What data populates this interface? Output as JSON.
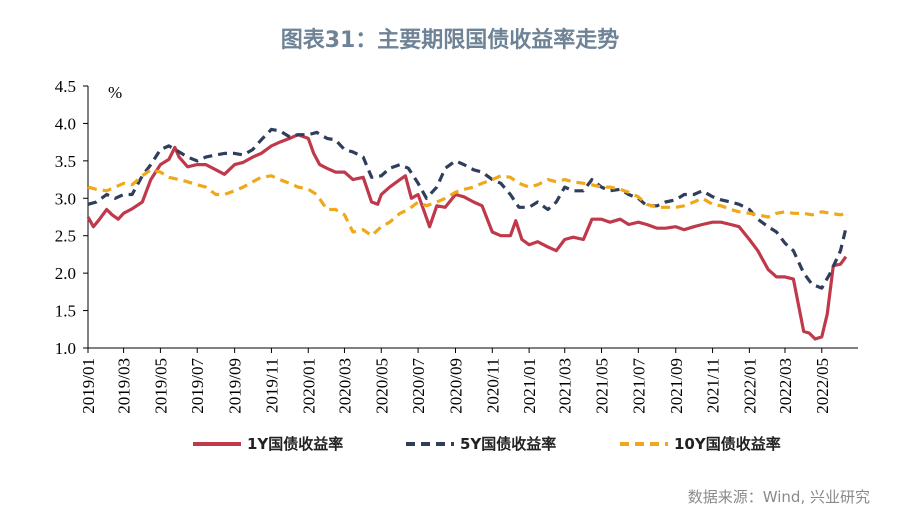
{
  "title": "图表31：主要期限国债收益率走势",
  "source": "数据来源：Wind, 兴业研究",
  "chart_data": {
    "type": "line",
    "ylabel": "%",
    "ylim": [
      1.0,
      4.5
    ],
    "yticks": [
      "1.0",
      "1.5",
      "2.0",
      "2.5",
      "3.0",
      "3.5",
      "4.0",
      "4.5"
    ],
    "xlim": [
      "2019-01",
      "2022-06"
    ],
    "xticks": [
      "2019/01",
      "2019/03",
      "2019/05",
      "2019/07",
      "2019/09",
      "2019/11",
      "2020/01",
      "2020/03",
      "2020/05",
      "2020/07",
      "2020/09",
      "2020/11",
      "2021/01",
      "2021/03",
      "2021/05",
      "2021/07",
      "2021/09",
      "2021/11",
      "2022/01",
      "2022/03",
      "2022/05"
    ],
    "legend_position": "bottom",
    "series": [
      {
        "name": "1Y国债收益率",
        "color": "#c0394b",
        "style": "solid",
        "points": [
          [
            "2019-01-01",
            2.75
          ],
          [
            "2019-01-10",
            2.62
          ],
          [
            "2019-01-20",
            2.72
          ],
          [
            "2019-02-01",
            2.85
          ],
          [
            "2019-02-10",
            2.78
          ],
          [
            "2019-02-20",
            2.72
          ],
          [
            "2019-03-01",
            2.8
          ],
          [
            "2019-03-15",
            2.86
          ],
          [
            "2019-04-01",
            2.95
          ],
          [
            "2019-04-15",
            3.25
          ],
          [
            "2019-05-01",
            3.45
          ],
          [
            "2019-05-15",
            3.52
          ],
          [
            "2019-05-25",
            3.68
          ],
          [
            "2019-06-01",
            3.55
          ],
          [
            "2019-06-15",
            3.42
          ],
          [
            "2019-07-01",
            3.45
          ],
          [
            "2019-07-15",
            3.45
          ],
          [
            "2019-08-01",
            3.38
          ],
          [
            "2019-08-15",
            3.32
          ],
          [
            "2019-09-01",
            3.45
          ],
          [
            "2019-09-15",
            3.48
          ],
          [
            "2019-10-01",
            3.55
          ],
          [
            "2019-10-15",
            3.6
          ],
          [
            "2019-11-01",
            3.7
          ],
          [
            "2019-11-15",
            3.75
          ],
          [
            "2019-12-01",
            3.8
          ],
          [
            "2019-12-15",
            3.85
          ],
          [
            "2020-01-01",
            3.8
          ],
          [
            "2020-01-10",
            3.6
          ],
          [
            "2020-01-20",
            3.45
          ],
          [
            "2020-02-01",
            3.4
          ],
          [
            "2020-02-15",
            3.35
          ],
          [
            "2020-03-01",
            3.35
          ],
          [
            "2020-03-15",
            3.25
          ],
          [
            "2020-04-01",
            3.28
          ],
          [
            "2020-04-15",
            2.95
          ],
          [
            "2020-04-25",
            2.92
          ],
          [
            "2020-05-01",
            3.05
          ],
          [
            "2020-05-15",
            3.15
          ],
          [
            "2020-06-01",
            3.25
          ],
          [
            "2020-06-10",
            3.3
          ],
          [
            "2020-06-20",
            3.0
          ],
          [
            "2020-07-01",
            3.05
          ],
          [
            "2020-07-10",
            2.85
          ],
          [
            "2020-07-20",
            2.62
          ],
          [
            "2020-08-01",
            2.9
          ],
          [
            "2020-08-15",
            2.88
          ],
          [
            "2020-09-01",
            3.05
          ],
          [
            "2020-09-15",
            3.02
          ],
          [
            "2020-10-01",
            2.95
          ],
          [
            "2020-10-15",
            2.9
          ],
          [
            "2020-11-01",
            2.55
          ],
          [
            "2020-11-15",
            2.5
          ],
          [
            "2020-12-01",
            2.5
          ],
          [
            "2020-12-10",
            2.7
          ],
          [
            "2020-12-20",
            2.45
          ],
          [
            "2021-01-01",
            2.38
          ],
          [
            "2021-01-15",
            2.42
          ],
          [
            "2021-02-01",
            2.35
          ],
          [
            "2021-02-15",
            2.3
          ],
          [
            "2021-03-01",
            2.45
          ],
          [
            "2021-03-15",
            2.48
          ],
          [
            "2021-04-01",
            2.45
          ],
          [
            "2021-04-15",
            2.72
          ],
          [
            "2021-05-01",
            2.72
          ],
          [
            "2021-05-15",
            2.68
          ],
          [
            "2021-06-01",
            2.72
          ],
          [
            "2021-06-15",
            2.65
          ],
          [
            "2021-07-01",
            2.68
          ],
          [
            "2021-07-15",
            2.65
          ],
          [
            "2021-08-01",
            2.6
          ],
          [
            "2021-08-15",
            2.6
          ],
          [
            "2021-09-01",
            2.62
          ],
          [
            "2021-09-15",
            2.58
          ],
          [
            "2021-10-01",
            2.62
          ],
          [
            "2021-10-15",
            2.65
          ],
          [
            "2021-11-01",
            2.68
          ],
          [
            "2021-11-15",
            2.68
          ],
          [
            "2021-12-01",
            2.65
          ],
          [
            "2021-12-15",
            2.62
          ],
          [
            "2022-01-01",
            2.45
          ],
          [
            "2022-01-15",
            2.3
          ],
          [
            "2022-02-01",
            2.05
          ],
          [
            "2022-02-15",
            1.95
          ],
          [
            "2022-03-01",
            1.95
          ],
          [
            "2022-03-15",
            1.92
          ],
          [
            "2022-04-01",
            1.22
          ],
          [
            "2022-04-10",
            1.2
          ],
          [
            "2022-04-20",
            1.12
          ],
          [
            "2022-05-01",
            1.15
          ],
          [
            "2022-05-10",
            1.45
          ],
          [
            "2022-05-20",
            2.1
          ],
          [
            "2022-06-01",
            2.12
          ],
          [
            "2022-06-10",
            2.22
          ]
        ]
      },
      {
        "name": "5Y国债收益率",
        "color": "#2f3e5c",
        "style": "dashed",
        "points": [
          [
            "2019-01-01",
            2.92
          ],
          [
            "2019-01-15",
            2.95
          ],
          [
            "2019-02-01",
            3.05
          ],
          [
            "2019-02-15",
            3.0
          ],
          [
            "2019-03-01",
            3.05
          ],
          [
            "2019-03-15",
            3.05
          ],
          [
            "2019-04-01",
            3.3
          ],
          [
            "2019-04-15",
            3.45
          ],
          [
            "2019-05-01",
            3.65
          ],
          [
            "2019-05-15",
            3.7
          ],
          [
            "2019-06-01",
            3.62
          ],
          [
            "2019-06-15",
            3.55
          ],
          [
            "2019-07-01",
            3.5
          ],
          [
            "2019-07-15",
            3.55
          ],
          [
            "2019-08-01",
            3.58
          ],
          [
            "2019-08-15",
            3.6
          ],
          [
            "2019-09-01",
            3.6
          ],
          [
            "2019-09-15",
            3.58
          ],
          [
            "2019-10-01",
            3.65
          ],
          [
            "2019-10-15",
            3.78
          ],
          [
            "2019-11-01",
            3.92
          ],
          [
            "2019-11-15",
            3.9
          ],
          [
            "2019-12-01",
            3.82
          ],
          [
            "2019-12-15",
            3.85
          ],
          [
            "2020-01-01",
            3.85
          ],
          [
            "2020-01-15",
            3.88
          ],
          [
            "2020-02-01",
            3.8
          ],
          [
            "2020-02-15",
            3.78
          ],
          [
            "2020-03-01",
            3.65
          ],
          [
            "2020-03-15",
            3.62
          ],
          [
            "2020-04-01",
            3.55
          ],
          [
            "2020-04-15",
            3.28
          ],
          [
            "2020-05-01",
            3.3
          ],
          [
            "2020-05-15",
            3.4
          ],
          [
            "2020-06-01",
            3.45
          ],
          [
            "2020-06-15",
            3.4
          ],
          [
            "2020-07-01",
            3.2
          ],
          [
            "2020-07-15",
            3.0
          ],
          [
            "2020-08-01",
            3.15
          ],
          [
            "2020-08-15",
            3.4
          ],
          [
            "2020-09-01",
            3.5
          ],
          [
            "2020-09-15",
            3.45
          ],
          [
            "2020-10-01",
            3.38
          ],
          [
            "2020-10-15",
            3.35
          ],
          [
            "2020-11-01",
            3.25
          ],
          [
            "2020-11-15",
            3.2
          ],
          [
            "2020-12-01",
            3.05
          ],
          [
            "2020-12-15",
            2.88
          ],
          [
            "2021-01-01",
            2.88
          ],
          [
            "2021-01-15",
            2.95
          ],
          [
            "2021-02-01",
            2.85
          ],
          [
            "2021-02-15",
            2.95
          ],
          [
            "2021-03-01",
            3.15
          ],
          [
            "2021-03-15",
            3.1
          ],
          [
            "2021-04-01",
            3.1
          ],
          [
            "2021-04-15",
            3.25
          ],
          [
            "2021-05-01",
            3.15
          ],
          [
            "2021-05-15",
            3.1
          ],
          [
            "2021-06-01",
            3.12
          ],
          [
            "2021-06-15",
            3.05
          ],
          [
            "2021-07-01",
            3.0
          ],
          [
            "2021-07-15",
            2.9
          ],
          [
            "2021-08-01",
            2.9
          ],
          [
            "2021-08-15",
            2.95
          ],
          [
            "2021-09-01",
            2.98
          ],
          [
            "2021-09-15",
            3.05
          ],
          [
            "2021-10-01",
            3.05
          ],
          [
            "2021-10-15",
            3.1
          ],
          [
            "2021-11-01",
            3.02
          ],
          [
            "2021-11-15",
            2.98
          ],
          [
            "2021-12-01",
            2.95
          ],
          [
            "2021-12-15",
            2.92
          ],
          [
            "2022-01-01",
            2.85
          ],
          [
            "2022-01-15",
            2.72
          ],
          [
            "2022-02-01",
            2.62
          ],
          [
            "2022-02-15",
            2.55
          ],
          [
            "2022-03-01",
            2.4
          ],
          [
            "2022-03-15",
            2.3
          ],
          [
            "2022-04-01",
            2.0
          ],
          [
            "2022-04-15",
            1.85
          ],
          [
            "2022-05-01",
            1.8
          ],
          [
            "2022-05-15",
            2.0
          ],
          [
            "2022-06-01",
            2.3
          ],
          [
            "2022-06-10",
            2.6
          ]
        ]
      },
      {
        "name": "10Y国债收益率",
        "color": "#f0a81a",
        "style": "dashed",
        "points": [
          [
            "2019-01-01",
            3.15
          ],
          [
            "2019-01-15",
            3.12
          ],
          [
            "2019-02-01",
            3.1
          ],
          [
            "2019-02-15",
            3.15
          ],
          [
            "2019-03-01",
            3.2
          ],
          [
            "2019-03-15",
            3.18
          ],
          [
            "2019-04-01",
            3.3
          ],
          [
            "2019-04-15",
            3.38
          ],
          [
            "2019-05-01",
            3.35
          ],
          [
            "2019-05-15",
            3.28
          ],
          [
            "2019-06-01",
            3.25
          ],
          [
            "2019-06-15",
            3.22
          ],
          [
            "2019-07-01",
            3.18
          ],
          [
            "2019-07-15",
            3.15
          ],
          [
            "2019-08-01",
            3.05
          ],
          [
            "2019-08-15",
            3.05
          ],
          [
            "2019-09-01",
            3.1
          ],
          [
            "2019-09-15",
            3.15
          ],
          [
            "2019-10-01",
            3.22
          ],
          [
            "2019-10-15",
            3.28
          ],
          [
            "2019-11-01",
            3.3
          ],
          [
            "2019-11-15",
            3.25
          ],
          [
            "2019-12-01",
            3.2
          ],
          [
            "2019-12-15",
            3.15
          ],
          [
            "2020-01-01",
            3.12
          ],
          [
            "2020-01-15",
            3.05
          ],
          [
            "2020-02-01",
            2.85
          ],
          [
            "2020-02-15",
            2.85
          ],
          [
            "2020-03-01",
            2.78
          ],
          [
            "2020-03-15",
            2.55
          ],
          [
            "2020-04-01",
            2.58
          ],
          [
            "2020-04-15",
            2.5
          ],
          [
            "2020-05-01",
            2.62
          ],
          [
            "2020-05-15",
            2.68
          ],
          [
            "2020-06-01",
            2.8
          ],
          [
            "2020-06-15",
            2.85
          ],
          [
            "2020-07-01",
            2.95
          ],
          [
            "2020-07-15",
            2.9
          ],
          [
            "2020-08-01",
            2.95
          ],
          [
            "2020-08-15",
            3.0
          ],
          [
            "2020-09-01",
            3.08
          ],
          [
            "2020-09-15",
            3.12
          ],
          [
            "2020-10-01",
            3.15
          ],
          [
            "2020-10-15",
            3.2
          ],
          [
            "2020-11-01",
            3.25
          ],
          [
            "2020-11-15",
            3.3
          ],
          [
            "2020-12-01",
            3.28
          ],
          [
            "2020-12-15",
            3.2
          ],
          [
            "2021-01-01",
            3.15
          ],
          [
            "2021-01-15",
            3.18
          ],
          [
            "2021-02-01",
            3.25
          ],
          [
            "2021-02-15",
            3.22
          ],
          [
            "2021-03-01",
            3.25
          ],
          [
            "2021-03-15",
            3.22
          ],
          [
            "2021-04-01",
            3.2
          ],
          [
            "2021-04-15",
            3.18
          ],
          [
            "2021-05-01",
            3.15
          ],
          [
            "2021-05-15",
            3.15
          ],
          [
            "2021-06-01",
            3.12
          ],
          [
            "2021-06-15",
            3.08
          ],
          [
            "2021-07-01",
            3.02
          ],
          [
            "2021-07-15",
            2.92
          ],
          [
            "2021-08-01",
            2.88
          ],
          [
            "2021-08-15",
            2.88
          ],
          [
            "2021-09-01",
            2.88
          ],
          [
            "2021-09-15",
            2.9
          ],
          [
            "2021-10-01",
            2.95
          ],
          [
            "2021-10-15",
            3.0
          ],
          [
            "2021-11-01",
            2.92
          ],
          [
            "2021-11-15",
            2.9
          ],
          [
            "2021-12-01",
            2.85
          ],
          [
            "2021-12-15",
            2.82
          ],
          [
            "2022-01-01",
            2.8
          ],
          [
            "2022-01-15",
            2.78
          ],
          [
            "2022-02-01",
            2.75
          ],
          [
            "2022-02-15",
            2.8
          ],
          [
            "2022-03-01",
            2.82
          ],
          [
            "2022-03-15",
            2.8
          ],
          [
            "2022-04-01",
            2.8
          ],
          [
            "2022-04-15",
            2.78
          ],
          [
            "2022-05-01",
            2.82
          ],
          [
            "2022-05-15",
            2.8
          ],
          [
            "2022-06-01",
            2.78
          ],
          [
            "2022-06-10",
            2.8
          ]
        ]
      }
    ]
  }
}
